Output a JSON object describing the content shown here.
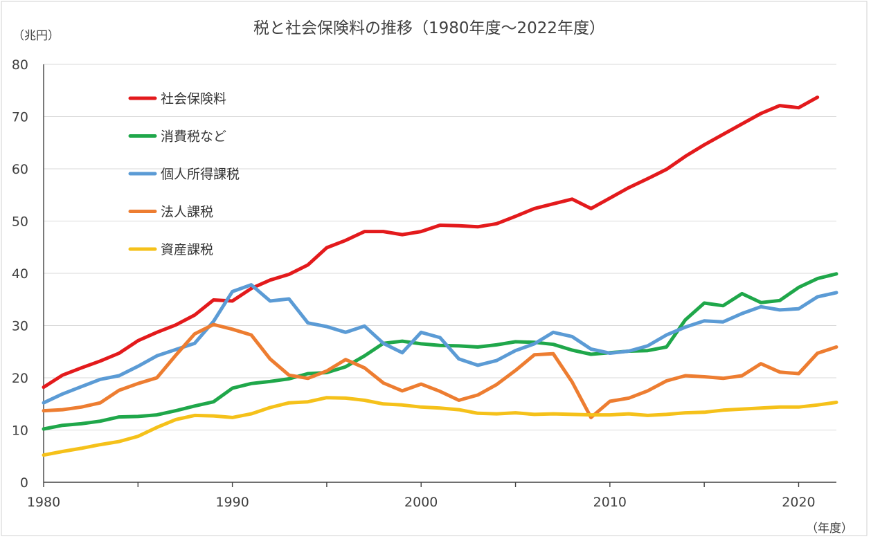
{
  "chart_data": {
    "type": "line",
    "title": "税と社会保険料の推移（1980年度～2022年度）",
    "y_unit": "（兆円）",
    "x_unit": "（年度）",
    "xlim": [
      1980,
      2022
    ],
    "ylim": [
      0,
      80
    ],
    "x_ticks": [
      1980,
      1990,
      2000,
      2010,
      2020
    ],
    "y_ticks": [
      0,
      10,
      20,
      30,
      40,
      50,
      60,
      70,
      80
    ],
    "grid": true,
    "legend_position": "top-left",
    "x": [
      1980,
      1981,
      1982,
      1983,
      1984,
      1985,
      1986,
      1987,
      1988,
      1989,
      1990,
      1991,
      1992,
      1993,
      1994,
      1995,
      1996,
      1997,
      1998,
      1999,
      2000,
      2001,
      2002,
      2003,
      2004,
      2005,
      2006,
      2007,
      2008,
      2009,
      2010,
      2011,
      2012,
      2013,
      2014,
      2015,
      2016,
      2017,
      2018,
      2019,
      2020,
      2021,
      2022
    ],
    "series": [
      {
        "name": "社会保険料",
        "color": "#e31a1c",
        "values": [
          18.2,
          20.5,
          21.9,
          23.2,
          24.7,
          27.1,
          28.7,
          30.1,
          32.0,
          34.9,
          34.7,
          37.1,
          38.7,
          39.8,
          41.6,
          44.9,
          46.3,
          48.0,
          48.0,
          47.4,
          48.0,
          49.2,
          49.1,
          48.9,
          49.5,
          50.9,
          52.4,
          53.3,
          54.2,
          52.4,
          54.4,
          56.4,
          58.1,
          59.9,
          62.4,
          64.6,
          66.6,
          68.6,
          70.6,
          72.1,
          71.7,
          73.7,
          null
        ]
      },
      {
        "name": "消費税など",
        "color": "#1fa74a",
        "values": [
          10.2,
          10.9,
          11.2,
          11.7,
          12.5,
          12.6,
          12.9,
          13.7,
          14.6,
          15.4,
          18.0,
          18.9,
          19.3,
          19.8,
          20.8,
          21.0,
          22.1,
          24.2,
          26.6,
          27.0,
          26.5,
          26.2,
          26.1,
          25.9,
          26.3,
          26.9,
          26.8,
          26.4,
          25.3,
          24.5,
          24.8,
          25.1,
          25.2,
          25.9,
          31.1,
          34.3,
          33.8,
          36.1,
          34.4,
          34.8,
          37.3,
          39.0,
          39.9
        ]
      },
      {
        "name": "個人所得課税",
        "color": "#5b9bd5",
        "values": [
          15.2,
          16.9,
          18.3,
          19.7,
          20.4,
          22.2,
          24.2,
          25.4,
          26.6,
          30.8,
          36.5,
          37.8,
          34.7,
          35.1,
          30.5,
          29.8,
          28.7,
          29.9,
          26.6,
          24.8,
          28.7,
          27.7,
          23.6,
          22.4,
          23.3,
          25.2,
          26.5,
          28.7,
          27.9,
          25.5,
          24.7,
          25.1,
          26.1,
          28.2,
          29.7,
          30.9,
          30.7,
          32.3,
          33.6,
          33.0,
          33.2,
          35.5,
          36.3
        ]
      },
      {
        "name": "法人課税",
        "color": "#ed7d31",
        "values": [
          13.7,
          13.9,
          14.4,
          15.2,
          17.6,
          18.9,
          20.0,
          24.3,
          28.4,
          30.2,
          29.3,
          28.2,
          23.6,
          20.5,
          19.9,
          21.3,
          23.5,
          21.9,
          19.0,
          17.5,
          18.8,
          17.4,
          15.7,
          16.7,
          18.7,
          21.4,
          24.4,
          24.6,
          19.2,
          12.4,
          15.5,
          16.1,
          17.5,
          19.4,
          20.4,
          20.2,
          19.9,
          20.4,
          22.7,
          21.1,
          20.8,
          24.7,
          25.9
        ]
      },
      {
        "name": "資産課税",
        "color": "#f5c11a",
        "values": [
          5.2,
          5.9,
          6.5,
          7.2,
          7.8,
          8.8,
          10.5,
          12.0,
          12.8,
          12.7,
          12.4,
          13.1,
          14.3,
          15.2,
          15.4,
          16.2,
          16.1,
          15.7,
          15.0,
          14.8,
          14.4,
          14.2,
          13.9,
          13.2,
          13.1,
          13.3,
          13.0,
          13.1,
          13.0,
          12.9,
          12.9,
          13.1,
          12.8,
          13.0,
          13.3,
          13.4,
          13.8,
          14.0,
          14.2,
          14.4,
          14.4,
          14.8,
          15.3
        ]
      }
    ]
  }
}
